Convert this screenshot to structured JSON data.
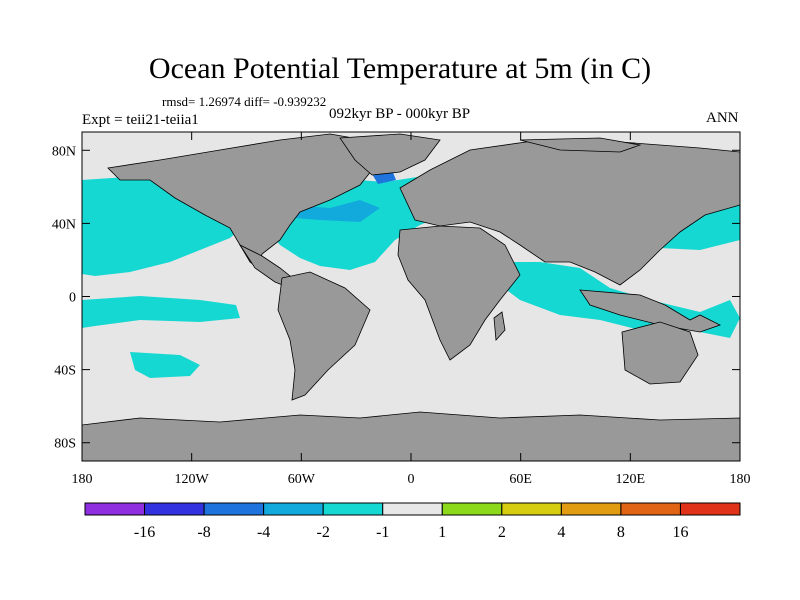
{
  "title": "Ocean Potential Temperature at 5m (in C)",
  "stats": "rmsd= 1.26974 diff= -0.939232",
  "experiment": "Expt = teii21-teiia1",
  "period": "092kyr BP - 000kyr BP",
  "season": "ANN",
  "y_axis": [
    {
      "value": 80,
      "label": "80N"
    },
    {
      "value": 40,
      "label": "40N"
    },
    {
      "value": 0,
      "label": "0"
    },
    {
      "value": -40,
      "label": "40S"
    },
    {
      "value": -80,
      "label": "80S"
    }
  ],
  "x_axis": [
    {
      "value": -180,
      "label": "180"
    },
    {
      "value": -120,
      "label": "120W"
    },
    {
      "value": -60,
      "label": "60W"
    },
    {
      "value": 0,
      "label": "0"
    },
    {
      "value": 60,
      "label": "60E"
    },
    {
      "value": 120,
      "label": "120E"
    },
    {
      "value": 180,
      "label": "180"
    }
  ],
  "colorbar": {
    "colors": [
      "#8e2ee0",
      "#3232e0",
      "#1e74dc",
      "#12aadc",
      "#16d8d2",
      "#e8e8e8",
      "#8cd81a",
      "#d6cc10",
      "#e29c12",
      "#e06414",
      "#e03218"
    ],
    "labels": [
      "-16",
      "-8",
      "-4",
      "-2",
      "-1",
      "1",
      "2",
      "4",
      "8",
      "16"
    ]
  },
  "map_colors": {
    "ocean_background": "#e6e6e6",
    "land": "#999999",
    "cool_1": "#16d8d2",
    "cool_2": "#12aadc",
    "cool_3": "#1e74dc",
    "warm_1": "#8cd81a",
    "warm_2": "#d6cc10"
  }
}
